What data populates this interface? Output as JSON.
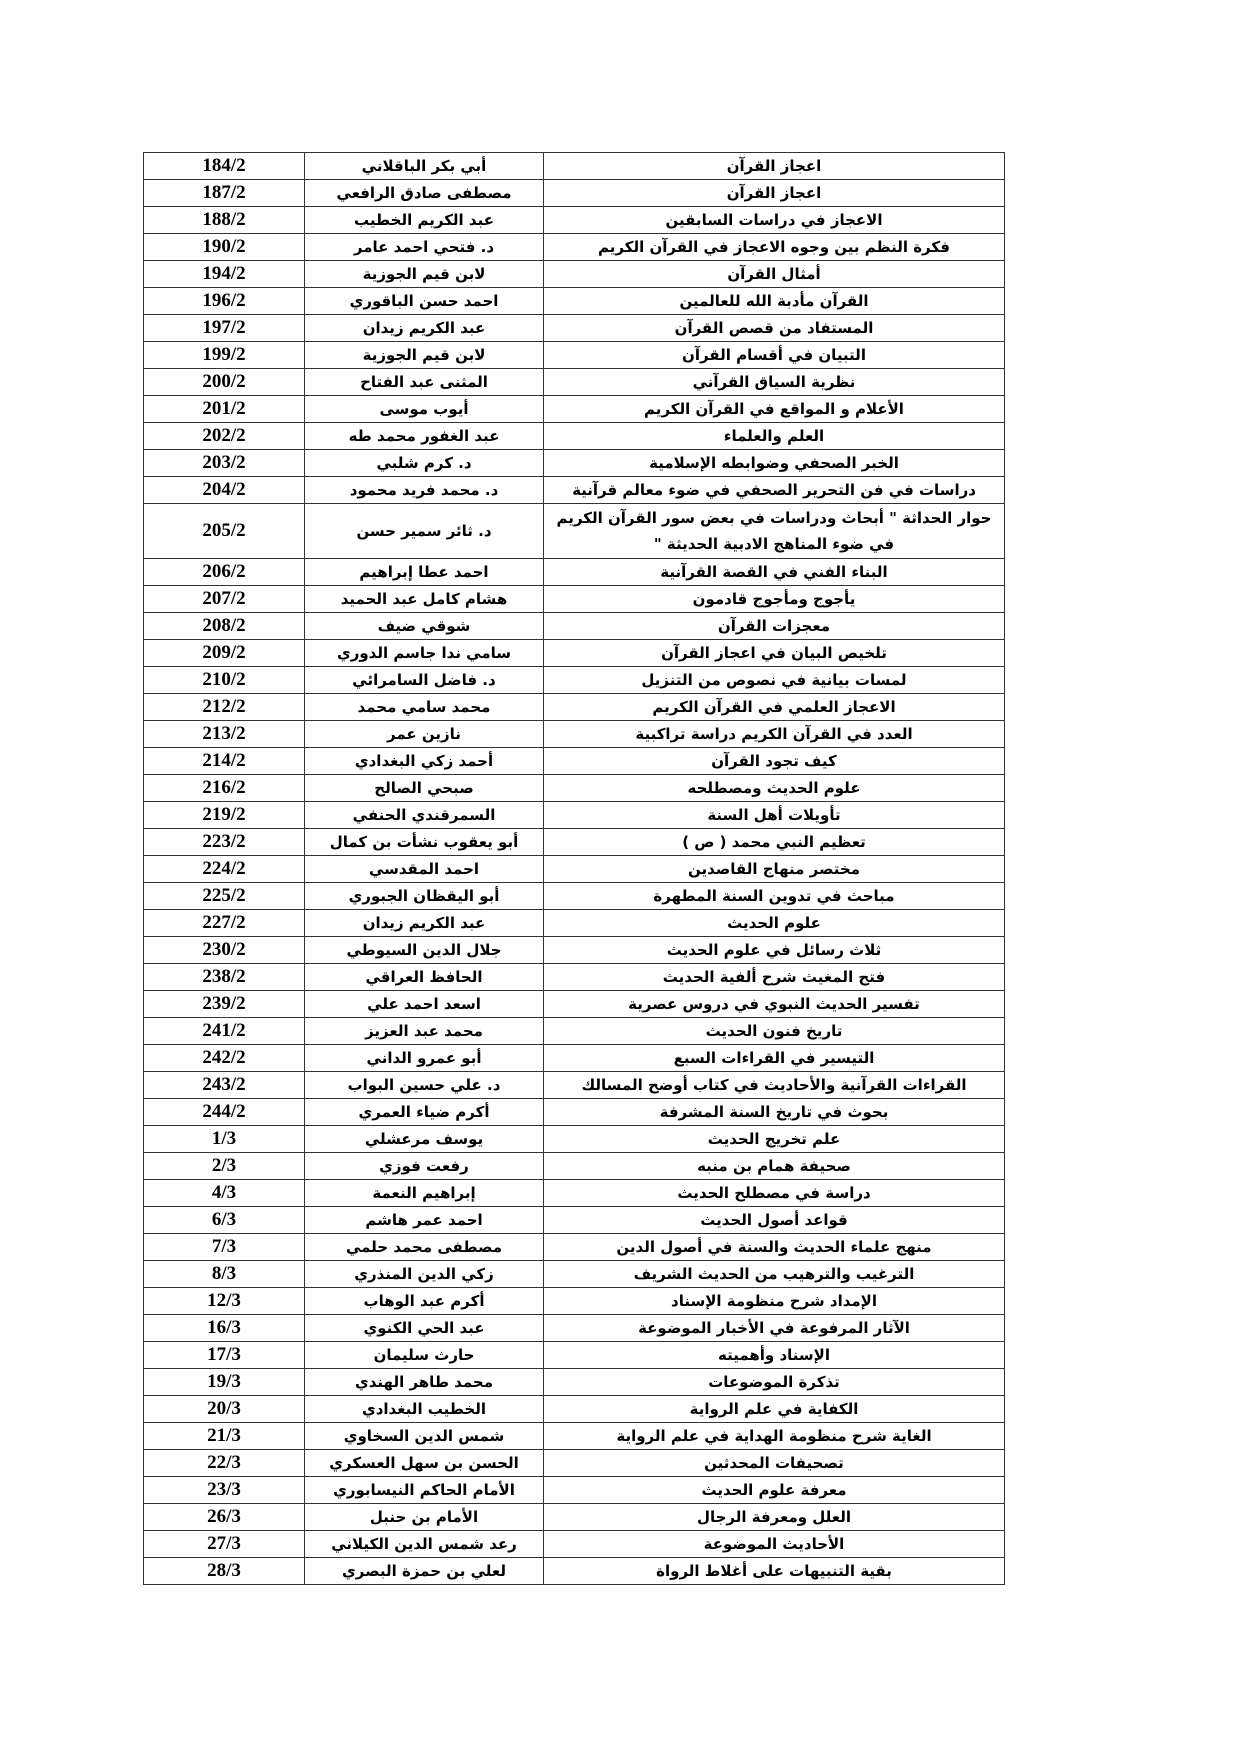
{
  "rows": [
    {
      "ref": "184/2",
      "author": "أبي بكر الباقلاني",
      "title": "اعجاز القرآن"
    },
    {
      "ref": "187/2",
      "author": "مصطفى صادق الرافعي",
      "title": "اعجاز القرآن"
    },
    {
      "ref": "188/2",
      "author": "عبد الكريم الخطيب",
      "title": "الاعجاز في دراسات السابقين"
    },
    {
      "ref": "190/2",
      "author": "د. فتحي احمد عامر",
      "title": "فكرة النظم بين وجوه الاعجاز في القرآن الكريم"
    },
    {
      "ref": "194/2",
      "author": "لابن قيم الجوزية",
      "title": "أمثال القرآن"
    },
    {
      "ref": "196/2",
      "author": "احمد حسن الباقوري",
      "title": "القرآن مأدبة الله للعالمين"
    },
    {
      "ref": "197/2",
      "author": "عبد الكريم زيدان",
      "title": "المستفاد من قصص القرآن"
    },
    {
      "ref": "199/2",
      "author": "لابن قيم الجوزية",
      "title": "التبيان في أقسام القرآن"
    },
    {
      "ref": "200/2",
      "author": "المثنى عبد الفتاح",
      "title": "نظرية السياق القرآني"
    },
    {
      "ref": "201/2",
      "author": "أيوب موسى",
      "title": "الأعلام و المواقع في القرآن الكريم"
    },
    {
      "ref": "202/2",
      "author": "عبد الغفور محمد طه",
      "title": "العلم والعلماء"
    },
    {
      "ref": "203/2",
      "author": "د. كرم شلبي",
      "title": "الخبر الصحفي وضوابطه الإسلامية"
    },
    {
      "ref": "204/2",
      "author": "د. محمد فريد محمود",
      "title": "دراسات في فن التحرير الصحفي في ضوء معالم قرآنية"
    },
    {
      "ref": "205/2",
      "author": "د. ثائر سمير حسن",
      "title": "حوار الحداثة \" أبحاث ودراسات في بعض سور القرآن الكريم في ضوء المناهج الادبية الحديثة \"",
      "tall": true
    },
    {
      "ref": "206/2",
      "author": "احمد عطا إبراهيم",
      "title": "البناء الفني في القصة القرآنية"
    },
    {
      "ref": "207/2",
      "author": "هشام كامل عبد الحميد",
      "title": "يأجوج ومأجوج قادمون"
    },
    {
      "ref": "208/2",
      "author": "شوقي ضيف",
      "title": "معجزات القرآن"
    },
    {
      "ref": "209/2",
      "author": "سامي ندا جاسم الدوري",
      "title": "تلخيص البيان في اعجاز القرآن"
    },
    {
      "ref": "210/2",
      "author": "د. فاضل السامرائي",
      "title": "لمسات بيانية في نصوص من التنزيل"
    },
    {
      "ref": "212/2",
      "author": "محمد سامي محمد",
      "title": "الاعجاز العلمي في القرآن الكريم"
    },
    {
      "ref": "213/2",
      "author": "نازين عمر",
      "title": "العدد في القرآن الكريم دراسة تراكبية"
    },
    {
      "ref": "214/2",
      "author": "أحمد زكي البغدادي",
      "title": "كيف تجود القرآن"
    },
    {
      "ref": "216/2",
      "author": "صبحي الصالح",
      "title": "علوم الحديث ومصطلحه"
    },
    {
      "ref": "219/2",
      "author": "السمرقندي الحنفي",
      "title": "تأويلات أهل السنة"
    },
    {
      "ref": "223/2",
      "author": "أبو يعقوب نشأت بن كمال",
      "title": "تعظيم النبي محمد ( ص )"
    },
    {
      "ref": "224/2",
      "author": "احمد المقدسي",
      "title": "مختصر منهاج القاصدين"
    },
    {
      "ref": "225/2",
      "author": "أبو اليقظان الجبوري",
      "title": "مباحث في تدوين السنة المطهرة"
    },
    {
      "ref": "227/2",
      "author": "عبد الكريم زيدان",
      "title": "علوم الحديث"
    },
    {
      "ref": "230/2",
      "author": "جلال الدين السيوطي",
      "title": "ثلاث رسائل في علوم الحديث"
    },
    {
      "ref": "238/2",
      "author": "الحافظ العراقي",
      "title": "فتح المغيث شرح ألفية الحديث"
    },
    {
      "ref": "239/2",
      "author": "اسعد احمد علي",
      "title": "تفسير الحديث النبوي في دروس عصرية"
    },
    {
      "ref": "241/2",
      "author": "محمد عبد العزيز",
      "title": "تاريخ فنون الحديث"
    },
    {
      "ref": "242/2",
      "author": "أبو عمرو الداني",
      "title": "التيسير في القراءات السبع"
    },
    {
      "ref": "243/2",
      "author": "د. علي حسين البواب",
      "title": "القراءات القرآنية والأحاديث في كتاب أوضح المسالك"
    },
    {
      "ref": "244/2",
      "author": "أكرم ضياء العمري",
      "title": "بحوث في تاريخ السنة المشرفة"
    },
    {
      "ref": "1/3",
      "author": "يوسف مرعشلي",
      "title": "علم تخريج الحديث"
    },
    {
      "ref": "2/3",
      "author": "رفعت فوزي",
      "title": "صحيفة همام بن منبه"
    },
    {
      "ref": "4/3",
      "author": "إبراهيم النعمة",
      "title": "دراسة في مصطلح الحديث"
    },
    {
      "ref": "6/3",
      "author": "احمد عمر هاشم",
      "title": "قواعد أصول الحديث"
    },
    {
      "ref": "7/3",
      "author": "مصطفى محمد حلمي",
      "title": "منهج علماء الحديث والسنة في أصول الدين"
    },
    {
      "ref": "8/3",
      "author": "زكي الدين المنذري",
      "title": "الترغيب والترهيب من الحديث الشريف"
    },
    {
      "ref": "12/3",
      "author": "أكرم عبد الوهاب",
      "title": "الإمداد شرح منظومة الإسناد"
    },
    {
      "ref": "16/3",
      "author": "عبد الحي الكنوي",
      "title": "الآثار المرفوعة في الأخبار الموضوعة"
    },
    {
      "ref": "17/3",
      "author": "حارث سليمان",
      "title": "الإسناد وأهميته"
    },
    {
      "ref": "19/3",
      "author": "محمد طاهر الهندي",
      "title": "تذكرة الموضوعات"
    },
    {
      "ref": "20/3",
      "author": "الخطيب البغدادي",
      "title": "الكفاية في علم الرواية"
    },
    {
      "ref": "21/3",
      "author": "شمس الدين السخاوي",
      "title": "الغاية شرح منظومة الهداية في علم الرواية"
    },
    {
      "ref": "22/3",
      "author": "الحسن بن سهل العسكري",
      "title": "تصحيفات المحدثين"
    },
    {
      "ref": "23/3",
      "author": "الأمام الحاكم النيسابوري",
      "title": "معرفة علوم الحديث"
    },
    {
      "ref": "26/3",
      "author": "الأمام بن حنبل",
      "title": "العلل ومعرفة الرجال"
    },
    {
      "ref": "27/3",
      "author": "رعد شمس الدين الكيلاني",
      "title": "الأحاديث الموضوعة"
    },
    {
      "ref": "28/3",
      "author": "لعلي بن حمزة البصري",
      "title": "بقية التنبيهات على أغلاط الرواة"
    }
  ]
}
